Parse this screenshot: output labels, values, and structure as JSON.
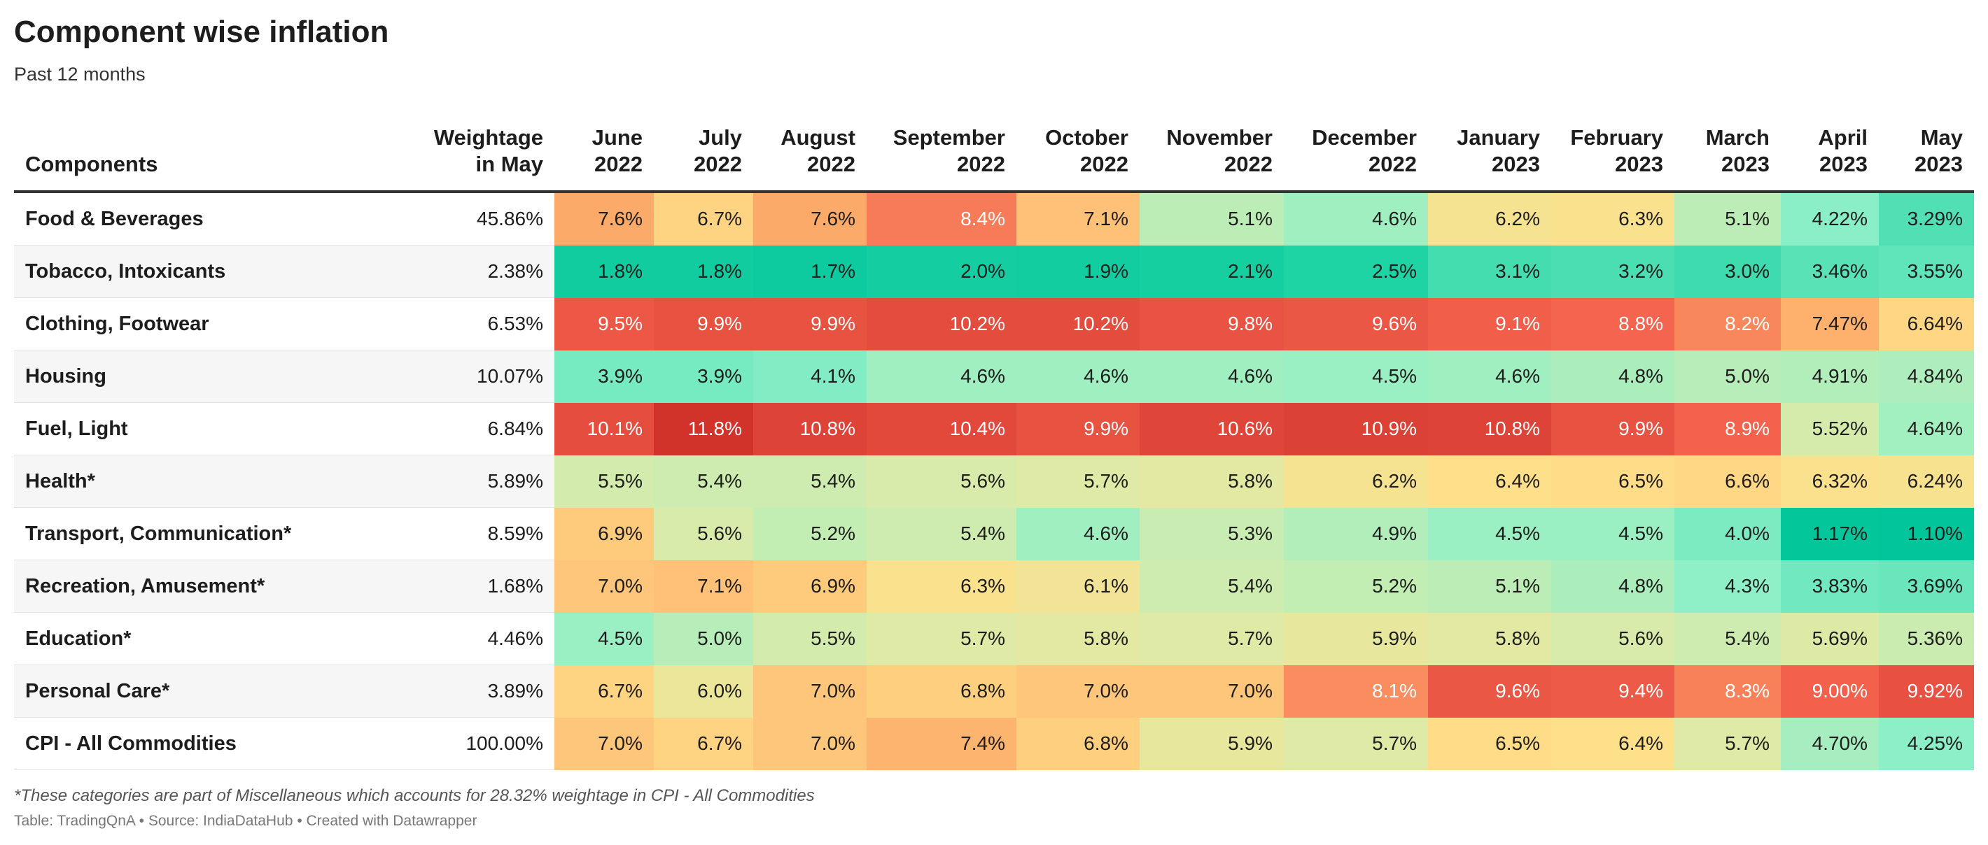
{
  "title": "Component wise inflation",
  "subtitle": "Past 12 months",
  "footnote": "*These categories are part of Miscellaneous which accounts for 28.32% weightage in CPI - All Commodities",
  "credits": {
    "table_label": "Table: TradingQnA",
    "separator": "•",
    "source": "Source: IndiaDataHub",
    "created": "Created with Datawrapper"
  },
  "chart_data": {
    "type": "table",
    "unit": "%",
    "columns": [
      {
        "line1": "Components",
        "line2": ""
      },
      {
        "line1": "Weightage",
        "line2": "in May"
      },
      {
        "line1": "June",
        "line2": "2022"
      },
      {
        "line1": "July",
        "line2": "2022"
      },
      {
        "line1": "August",
        "line2": "2022"
      },
      {
        "line1": "September",
        "line2": "2022"
      },
      {
        "line1": "October",
        "line2": "2022"
      },
      {
        "line1": "November",
        "line2": "2022"
      },
      {
        "line1": "December",
        "line2": "2022"
      },
      {
        "line1": "January",
        "line2": "2023"
      },
      {
        "line1": "February",
        "line2": "2023"
      },
      {
        "line1": "March",
        "line2": "2023"
      },
      {
        "line1": "April",
        "line2": "2023"
      },
      {
        "line1": "May",
        "line2": "2023"
      }
    ],
    "color_scale": {
      "low": "#00c49a",
      "mid": "#ffe08a",
      "high": "#d1322a"
    },
    "rows": [
      {
        "component": "Food & Beverages",
        "weightage": "45.86%",
        "values": [
          "7.6%",
          "6.7%",
          "7.6%",
          "8.4%",
          "7.1%",
          "5.1%",
          "4.6%",
          "6.2%",
          "6.3%",
          "5.1%",
          "4.22%",
          "3.29%"
        ]
      },
      {
        "component": "Tobacco, Intoxicants",
        "weightage": "2.38%",
        "values": [
          "1.8%",
          "1.8%",
          "1.7%",
          "2.0%",
          "1.9%",
          "2.1%",
          "2.5%",
          "3.1%",
          "3.2%",
          "3.0%",
          "3.46%",
          "3.55%"
        ]
      },
      {
        "component": "Clothing, Footwear",
        "weightage": "6.53%",
        "values": [
          "9.5%",
          "9.9%",
          "9.9%",
          "10.2%",
          "10.2%",
          "9.8%",
          "9.6%",
          "9.1%",
          "8.8%",
          "8.2%",
          "7.47%",
          "6.64%"
        ]
      },
      {
        "component": "Housing",
        "weightage": "10.07%",
        "values": [
          "3.9%",
          "3.9%",
          "4.1%",
          "4.6%",
          "4.6%",
          "4.6%",
          "4.5%",
          "4.6%",
          "4.8%",
          "5.0%",
          "4.91%",
          "4.84%"
        ]
      },
      {
        "component": "Fuel, Light",
        "weightage": "6.84%",
        "values": [
          "10.1%",
          "11.8%",
          "10.8%",
          "10.4%",
          "9.9%",
          "10.6%",
          "10.9%",
          "10.8%",
          "9.9%",
          "8.9%",
          "5.52%",
          "4.64%"
        ]
      },
      {
        "component": "Health*",
        "weightage": "5.89%",
        "values": [
          "5.5%",
          "5.4%",
          "5.4%",
          "5.6%",
          "5.7%",
          "5.8%",
          "6.2%",
          "6.4%",
          "6.5%",
          "6.6%",
          "6.32%",
          "6.24%"
        ]
      },
      {
        "component": "Transport, Communication*",
        "weightage": "8.59%",
        "values": [
          "6.9%",
          "5.6%",
          "5.2%",
          "5.4%",
          "4.6%",
          "5.3%",
          "4.9%",
          "4.5%",
          "4.5%",
          "4.0%",
          "1.17%",
          "1.10%"
        ]
      },
      {
        "component": "Recreation, Amusement*",
        "weightage": "1.68%",
        "values": [
          "7.0%",
          "7.1%",
          "6.9%",
          "6.3%",
          "6.1%",
          "5.4%",
          "5.2%",
          "5.1%",
          "4.8%",
          "4.3%",
          "3.83%",
          "3.69%"
        ]
      },
      {
        "component": "Education*",
        "weightage": "4.46%",
        "values": [
          "4.5%",
          "5.0%",
          "5.5%",
          "5.7%",
          "5.8%",
          "5.7%",
          "5.9%",
          "5.8%",
          "5.6%",
          "5.4%",
          "5.69%",
          "5.36%"
        ]
      },
      {
        "component": "Personal Care*",
        "weightage": "3.89%",
        "values": [
          "6.7%",
          "6.0%",
          "7.0%",
          "6.8%",
          "7.0%",
          "7.0%",
          "8.1%",
          "9.6%",
          "9.4%",
          "8.3%",
          "9.00%",
          "9.92%"
        ]
      },
      {
        "component": "CPI - All Commodities",
        "weightage": "100.00%",
        "values": [
          "7.0%",
          "6.7%",
          "7.0%",
          "7.4%",
          "6.8%",
          "5.9%",
          "5.7%",
          "6.5%",
          "6.4%",
          "5.7%",
          "4.70%",
          "4.25%"
        ]
      }
    ]
  }
}
